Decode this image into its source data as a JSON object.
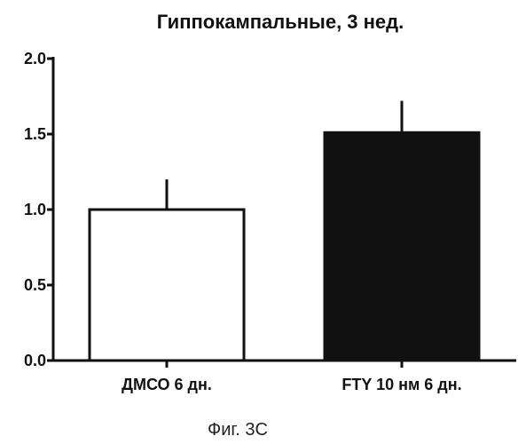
{
  "figure_caption": "Фиг. 3C",
  "chart_data": {
    "type": "bar",
    "title": "Гиппокампальные, 3 нед.",
    "xlabel": "",
    "ylabel": "",
    "categories": [
      "ДМСО 6 дн.",
      "FTY 10 нм 6 дн."
    ],
    "values": [
      1.0,
      1.51
    ],
    "error_bars": [
      0.2,
      0.21
    ],
    "ylim": [
      0,
      2.0
    ],
    "yticks": [
      0.0,
      0.5,
      1.0,
      1.5,
      2.0
    ],
    "ytick_labels": [
      "0.0",
      "0.5",
      "1.0",
      "1.5",
      "2.0"
    ],
    "bar_colors": [
      "#ffffff",
      "#111111"
    ],
    "bar_edge_color": "#111111",
    "grid": false,
    "legend": "none"
  }
}
